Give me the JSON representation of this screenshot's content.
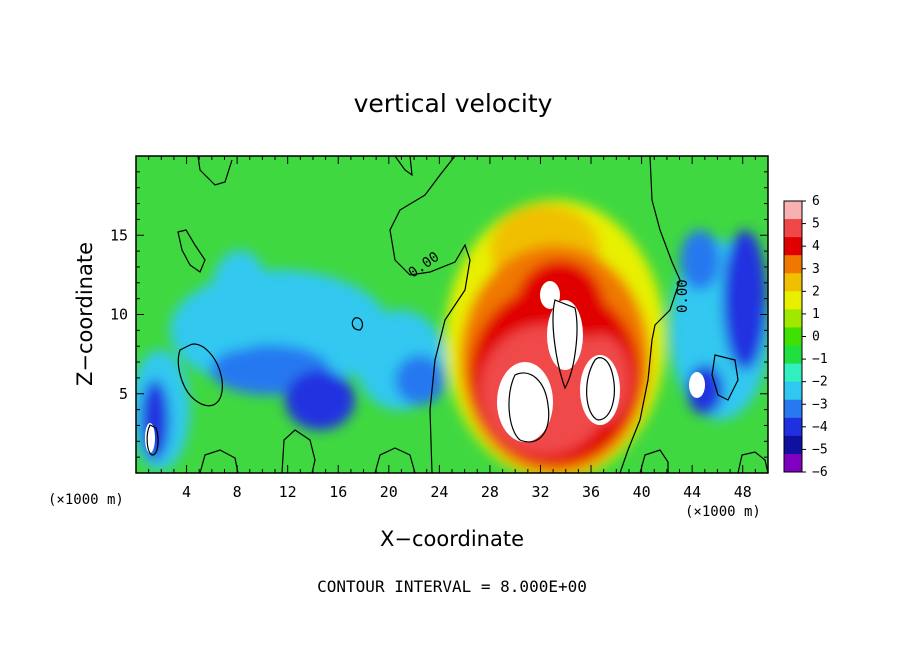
{
  "chart_data": {
    "type": "heatmap",
    "title": "vertical velocity",
    "xlabel": "X−coordinate",
    "ylabel": "Z−coordinate",
    "x_unit_label": "(×1000 m)",
    "x_unit_label_right": "(×1000 m)",
    "xlim": [
      0,
      50
    ],
    "ylim": [
      0,
      20
    ],
    "x_ticks": [
      "4",
      "8",
      "12",
      "16",
      "20",
      "24",
      "28",
      "32",
      "36",
      "40",
      "44",
      "48"
    ],
    "x_tick_values": [
      4,
      8,
      12,
      16,
      20,
      24,
      28,
      32,
      36,
      40,
      44,
      48
    ],
    "y_ticks": [
      "5",
      "10",
      "15"
    ],
    "y_tick_values": [
      5,
      10,
      15
    ],
    "colorbar": {
      "labels": [
        "6",
        "5",
        "4",
        "3",
        "2",
        "1",
        "0",
        "−1",
        "−2",
        "−3",
        "−4",
        "−5",
        "−6"
      ],
      "min": -6,
      "max": 6,
      "colors": [
        "#f8b0b0",
        "#f04848",
        "#e00000",
        "#f07800",
        "#f0c000",
        "#e8f000",
        "#a0e800",
        "#40e000",
        "#20e040",
        "#30f0c0",
        "#30c8f0",
        "#2878f0",
        "#2030e0",
        "#1010a0",
        "#8000c0"
      ]
    },
    "contour_labels": [
      "0.00",
      "0.00"
    ],
    "contour_interval_text": "CONTOUR INTERVAL = 8.000E+00",
    "grid": false
  }
}
